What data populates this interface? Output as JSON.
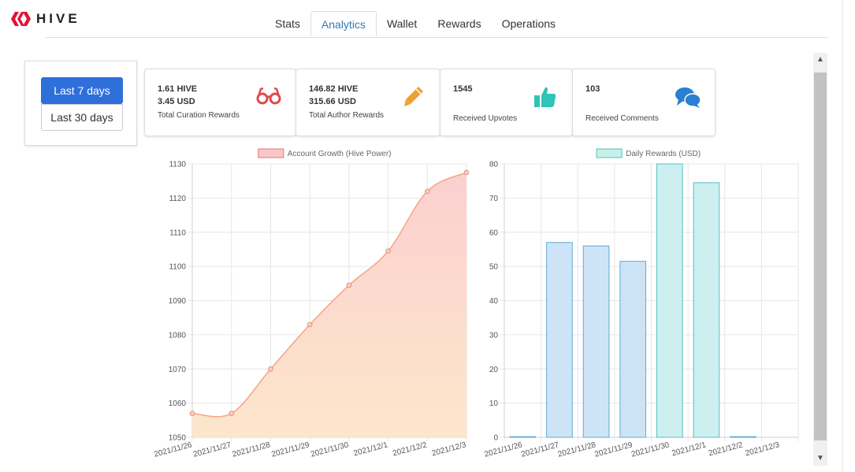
{
  "brand": {
    "name": "HIVE",
    "color": "#e31337"
  },
  "tabs": [
    {
      "label": "Stats",
      "active": false
    },
    {
      "label": "Analytics",
      "active": true
    },
    {
      "label": "Wallet",
      "active": false
    },
    {
      "label": "Rewards",
      "active": false
    },
    {
      "label": "Operations",
      "active": false
    }
  ],
  "period": {
    "last7": "Last 7 days",
    "last30": "Last 30 days",
    "selected": "Last 7 days"
  },
  "cards": {
    "curation": {
      "hive": "1.61 HIVE",
      "usd": "3.45 USD",
      "label": "Total Curation Rewards",
      "icon": "glasses-icon",
      "color": "#e04b4b"
    },
    "author": {
      "hive": "146.82 HIVE",
      "usd": "315.66 USD",
      "label": "Total Author Rewards",
      "icon": "pencil-icon",
      "color": "#f0a030"
    },
    "upvotes": {
      "value": "1545",
      "label": "Received Upvotes",
      "icon": "thumbs-up-icon",
      "color": "#2ec4b6"
    },
    "comments": {
      "value": "103",
      "label": "Received Comments",
      "icon": "comments-icon",
      "color": "#2a7fd4"
    }
  },
  "chart_data": [
    {
      "type": "area",
      "series": [
        {
          "name": "Account Growth (Hive Power)",
          "values": [
            1057,
            1057,
            1070,
            1083,
            1094.5,
            1104.5,
            1122,
            1127.5
          ]
        }
      ],
      "categories": [
        "2021/11/26",
        "2021/11/27",
        "2021/11/28",
        "2021/11/29",
        "2021/11/30",
        "2021/12/1",
        "2021/12/2",
        "2021/12/3"
      ],
      "ylim": [
        1050,
        1130
      ],
      "yticks": [
        1050,
        1060,
        1070,
        1080,
        1090,
        1100,
        1110,
        1120,
        1130
      ],
      "grid": true,
      "legend": "top",
      "colors": {
        "line": "#f4a582",
        "fill_top": "#fbd0cf",
        "fill_bottom": "#fde6cc",
        "legend_box": "#f8c8c8",
        "legend_border": "#e57373"
      }
    },
    {
      "type": "bar",
      "series": [
        {
          "name": "Daily Rewards (USD)",
          "values": [
            0.2,
            57,
            56,
            51.5,
            80,
            74.5,
            0.2,
            0
          ]
        }
      ],
      "categories": [
        "2021/11/26",
        "2021/11/27",
        "2021/11/28",
        "2021/11/29",
        "2021/11/30",
        "2021/12/1",
        "2021/12/2",
        "2021/12/3"
      ],
      "ylim": [
        0,
        80
      ],
      "yticks": [
        0,
        10,
        20,
        30,
        40,
        50,
        60,
        70,
        80
      ],
      "grid": true,
      "legend": "top",
      "colors": {
        "bar": "#cde4f7",
        "bar_border": "#5fa9d8",
        "bar_alt": "#cdeff0",
        "bar_alt_border": "#4fc3c7",
        "legend_box": "#c8f0ea",
        "legend_border": "#4fc3b4"
      }
    }
  ]
}
